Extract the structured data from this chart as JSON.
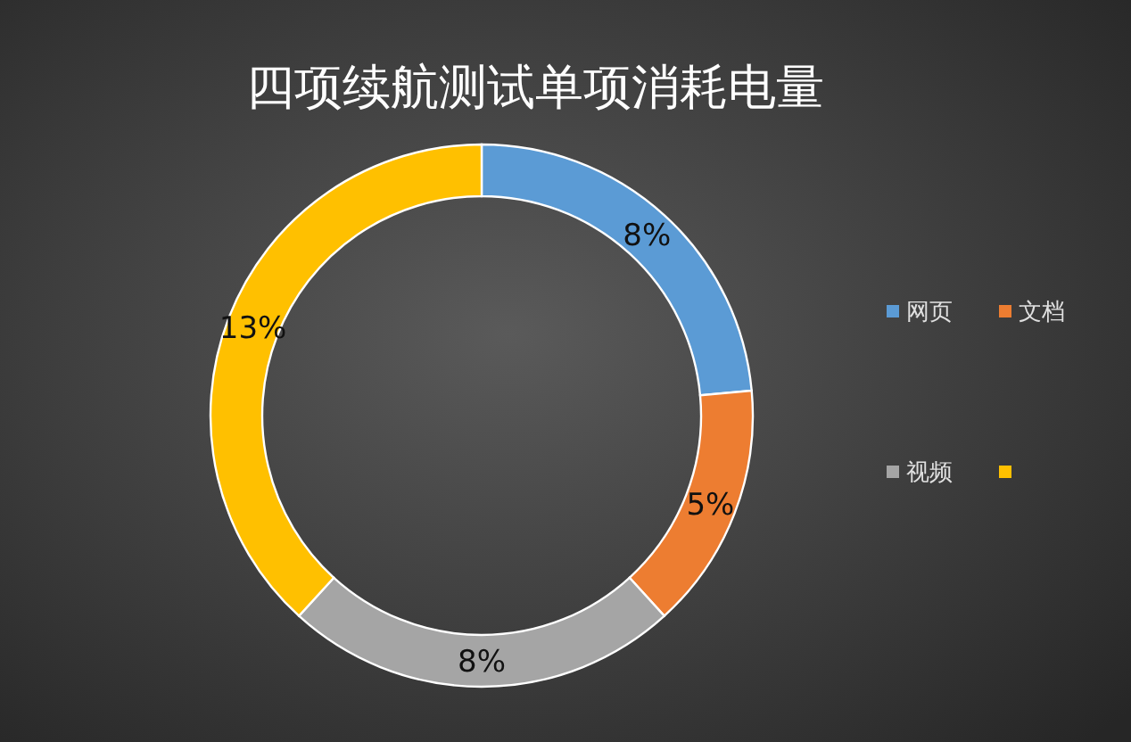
{
  "chart_data": {
    "type": "donut",
    "title": "四项续航测试单项消耗电量",
    "categories": [
      "网页",
      "文档",
      "视频",
      null
    ],
    "values": [
      8,
      5,
      8,
      13
    ],
    "colors": [
      "#5b9bd5",
      "#ed7d31",
      "#a5a5a5",
      "#ffc000"
    ],
    "value_labels": [
      "8%",
      "5%",
      "8%",
      "13%"
    ],
    "legend": "right"
  }
}
